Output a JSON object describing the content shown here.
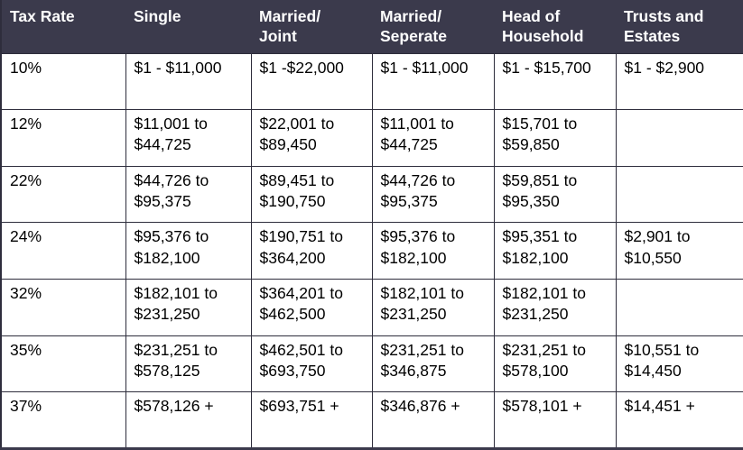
{
  "colors": {
    "header_bg": "#3B3A4C",
    "header_text": "#FFFFFF",
    "grid_line": "#2E2D3C",
    "body_text": "#000000",
    "page_bg": "#FFFFFF"
  },
  "table": {
    "columns": [
      "Tax Rate",
      "Single",
      "Married/\nJoint",
      "Married/\nSeperate",
      "Head of\nHousehold",
      "Trusts and\nEstates"
    ],
    "rows": [
      [
        "10%",
        "$1 - $11,000",
        "$1 -$22,000",
        "$1 - $11,000",
        "$1 - $15,700",
        "$1 - $2,900"
      ],
      [
        "12%",
        "$11,001 to\n$44,725",
        "$22,001 to\n$89,450",
        "$11,001 to\n$44,725",
        "$15,701 to\n$59,850",
        ""
      ],
      [
        "22%",
        "$44,726 to\n$95,375",
        "$89,451 to\n$190,750",
        "$44,726 to\n$95,375",
        "$59,851 to\n$95,350",
        ""
      ],
      [
        "24%",
        "$95,376 to\n$182,100",
        "$190,751 to\n$364,200",
        "$95,376 to\n$182,100",
        "$95,351 to\n$182,100",
        "$2,901 to\n$10,550"
      ],
      [
        "32%",
        "$182,101 to\n$231,250",
        "$364,201 to\n$462,500",
        "$182,101 to\n$231,250",
        "$182,101 to\n$231,250",
        ""
      ],
      [
        "35%",
        "$231,251 to\n$578,125",
        "$462,501 to\n$693,750",
        "$231,251 to\n$346,875",
        "$231,251 to\n$578,100",
        "$10,551 to\n$14,450"
      ],
      [
        "37%",
        "$578,126 +",
        "$693,751 +",
        "$346,876 +",
        "$578,101 +",
        "$14,451 +"
      ]
    ]
  }
}
